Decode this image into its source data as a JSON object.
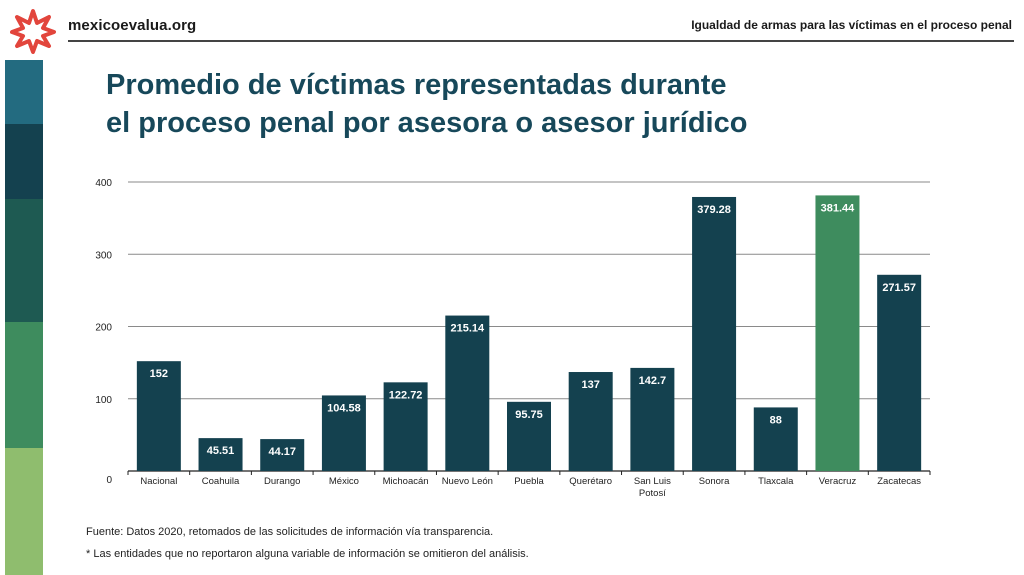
{
  "header": {
    "brand": "mexicoevalua.org",
    "logo_icon": "asterisk-logo-icon",
    "logo_color": "#e2453c",
    "section_title": "Igualdad de armas para las víctimas en el proceso penal"
  },
  "left_strip": {
    "colors": [
      "#236b80",
      "#14414f",
      "#1e5a52",
      "#3e8c5e",
      "#8fbd6e"
    ]
  },
  "title": {
    "line1": "Promedio de víctimas representadas durante",
    "line2": "el proceso penal por asesora o asesor jurídico"
  },
  "chart_data": {
    "type": "bar",
    "categories": [
      "Nacional",
      "Coahuila",
      "Durango",
      "México",
      "Michoacán",
      "Nuevo León",
      "Puebla",
      "Querétaro",
      "San Luis Potosí",
      "Sonora",
      "Tlaxcala",
      "Veracruz",
      "Zacatecas"
    ],
    "values": [
      152,
      45.51,
      44.17,
      104.58,
      122.72,
      215.14,
      95.75,
      137,
      142.7,
      379.28,
      88,
      381.44,
      271.57
    ],
    "value_labels": [
      "152",
      "45.51",
      "44.17",
      "104.58",
      "122.72",
      "215.14",
      "95.75",
      "137",
      "142.7",
      "379.28",
      "88",
      "381.44",
      "271.57"
    ],
    "highlight": [
      "Veracruz"
    ],
    "colors": {
      "bar": "#14414f",
      "highlight": "#3e8c5e",
      "grid": "#8a8a8a"
    },
    "yticks": [
      "400",
      "300",
      "200",
      "100",
      "0"
    ],
    "ylim": [
      0,
      400
    ],
    "grid": true,
    "title": "",
    "xlabel": "",
    "ylabel": ""
  },
  "notes": {
    "source": "Fuente: Datos 2020, retomados de las solicitudes de información vía transparencia.",
    "footnote": "* Las entidades que no reportaron alguna variable de información se omitieron del análisis."
  }
}
